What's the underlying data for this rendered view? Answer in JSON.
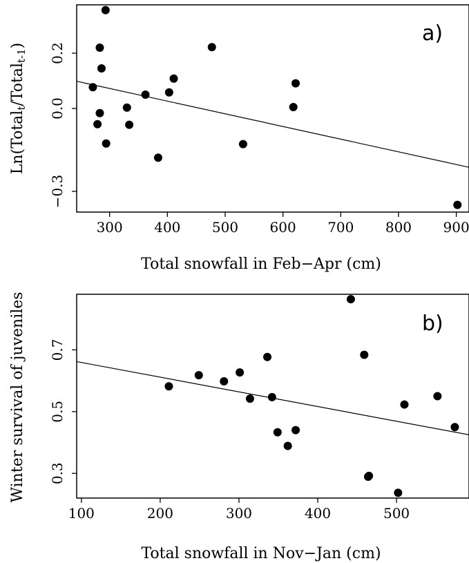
{
  "chart_data": [
    {
      "type": "scatter",
      "panel_label": "a)",
      "xlabel": "Total snowfall in Feb−Apr (cm)",
      "ylabel": "Ln(Total_t/Total_t-1)",
      "ylabel_parts": {
        "pre": "Ln(Total",
        "sub1": "t",
        "mid": "/Total",
        "sub2": "t-1",
        "post": ")"
      },
      "xlim": [
        243,
        922
      ],
      "ylim": [
        -0.375,
        0.375
      ],
      "xticks": [
        300,
        400,
        500,
        600,
        700,
        800,
        900
      ],
      "xtick_labels": [
        "300",
        "400",
        "500",
        "600",
        "700",
        "800",
        "900"
      ],
      "yticks": [
        -0.3,
        0.0,
        0.2
      ],
      "ytick_labels": [
        "−0.3",
        "0.0",
        "0.2"
      ],
      "grid": false,
      "points": [
        {
          "x": 271,
          "y": 0.077
        },
        {
          "x": 293,
          "y": 0.356
        },
        {
          "x": 283,
          "y": 0.22
        },
        {
          "x": 286,
          "y": 0.145
        },
        {
          "x": 283,
          "y": -0.017
        },
        {
          "x": 279,
          "y": -0.057
        },
        {
          "x": 294,
          "y": -0.127
        },
        {
          "x": 330,
          "y": 0.003
        },
        {
          "x": 334,
          "y": -0.059
        },
        {
          "x": 362,
          "y": 0.05
        },
        {
          "x": 384,
          "y": -0.178
        },
        {
          "x": 403,
          "y": 0.058
        },
        {
          "x": 411,
          "y": 0.108
        },
        {
          "x": 477,
          "y": 0.222
        },
        {
          "x": 531,
          "y": -0.129
        },
        {
          "x": 618,
          "y": 0.005
        },
        {
          "x": 622,
          "y": 0.091
        },
        {
          "x": 902,
          "y": -0.349
        }
      ],
      "fit_line": {
        "x": [
          243,
          922
        ],
        "y": [
          0.0985,
          -0.213
        ]
      }
    },
    {
      "type": "scatter",
      "panel_label": "b)",
      "xlabel": "Total snowfall in Nov−Jan (cm)",
      "ylabel": "Winter survival of juveniles",
      "xlim": [
        94,
        592
      ],
      "ylim": [
        0.22,
        0.88
      ],
      "xticks": [
        100,
        200,
        300,
        400,
        500
      ],
      "xtick_labels": [
        "100",
        "200",
        "300",
        "400",
        "500"
      ],
      "yticks": [
        0.3,
        0.5,
        0.7
      ],
      "ytick_labels": [
        "0.3",
        "0.5",
        "0.7"
      ],
      "grid": false,
      "points": [
        {
          "x": 211,
          "y": 0.582
        },
        {
          "x": 249,
          "y": 0.618
        },
        {
          "x": 281,
          "y": 0.598
        },
        {
          "x": 301,
          "y": 0.627
        },
        {
          "x": 314,
          "y": 0.542
        },
        {
          "x": 336,
          "y": 0.677
        },
        {
          "x": 342,
          "y": 0.547
        },
        {
          "x": 349,
          "y": 0.433
        },
        {
          "x": 362,
          "y": 0.389
        },
        {
          "x": 372,
          "y": 0.44
        },
        {
          "x": 442,
          "y": 0.864
        },
        {
          "x": 459,
          "y": 0.684
        },
        {
          "x": 464,
          "y": 0.289
        },
        {
          "x": 465,
          "y": 0.292
        },
        {
          "x": 502,
          "y": 0.237
        },
        {
          "x": 510,
          "y": 0.523
        },
        {
          "x": 552,
          "y": 0.55
        },
        {
          "x": 574,
          "y": 0.45
        }
      ],
      "fit_line": {
        "x": [
          94,
          592
        ],
        "y": [
          0.662,
          0.425
        ]
      }
    }
  ]
}
